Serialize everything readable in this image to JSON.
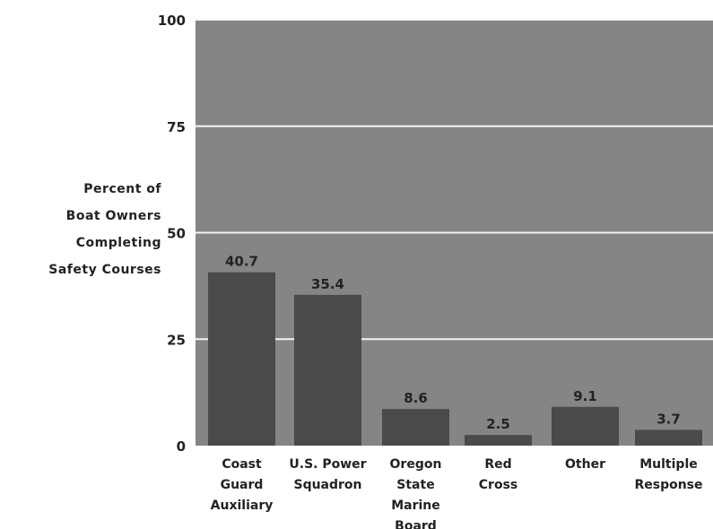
{
  "chart_data": {
    "type": "bar",
    "ylabel_lines": [
      "Percent of",
      "Boat Owners",
      "Completing",
      "Safety Courses"
    ],
    "ylim": [
      0,
      100
    ],
    "yticks": [
      "0",
      "25",
      "50",
      "75",
      "100"
    ],
    "grid": true,
    "categories": [
      [
        "Coast",
        "Guard",
        "Auxiliary"
      ],
      [
        "U.S. Power",
        "Squadron"
      ],
      [
        "Oregon",
        "State",
        "Marine",
        "Board"
      ],
      [
        "Red",
        "Cross"
      ],
      [
        "Other"
      ],
      [
        "Multiple",
        "Response"
      ]
    ],
    "values": [
      40.7,
      35.4,
      8.6,
      2.5,
      9.1,
      3.7
    ],
    "value_labels": [
      "40.7",
      "35.4",
      "8.6",
      "2.5",
      "9.1",
      "3.7"
    ],
    "colors": {
      "plot_background": "#858585",
      "bar": "#4a4a4a",
      "grid": "#f4f4f4",
      "text": "#222222"
    }
  }
}
